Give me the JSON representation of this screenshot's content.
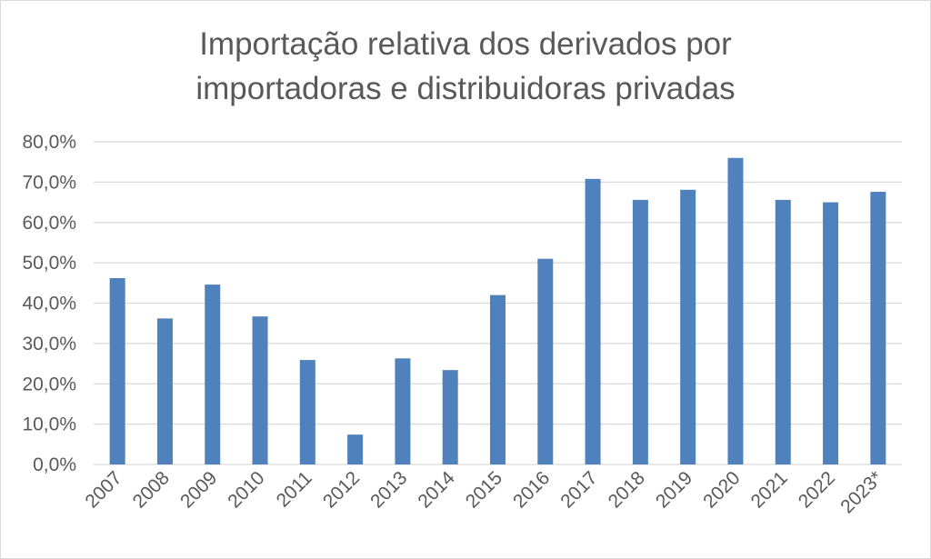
{
  "chart_data": {
    "type": "bar",
    "title": "Importação relativa dos derivados por importadoras e distribuidoras privadas",
    "title_lines": [
      "Importação relativa dos derivados por",
      "importadoras e distribuidoras privadas"
    ],
    "categories": [
      "2007",
      "2008",
      "2009",
      "2010",
      "2011",
      "2012",
      "2013",
      "2014",
      "2015",
      "2016",
      "2017",
      "2018",
      "2019",
      "2020",
      "2021",
      "2022",
      "2023*"
    ],
    "values": [
      46.2,
      36.2,
      44.6,
      36.7,
      25.9,
      7.4,
      26.3,
      23.4,
      42.0,
      51.0,
      70.8,
      65.6,
      68.1,
      76.0,
      65.6,
      65.0,
      67.6
    ],
    "value_unit": "%",
    "xlabel": "",
    "ylabel": "",
    "ylim": [
      0,
      80
    ],
    "yticks": [
      0,
      10,
      20,
      30,
      40,
      50,
      60,
      70,
      80
    ],
    "ytick_labels": [
      "0,0%",
      "10,0%",
      "20,0%",
      "30,0%",
      "40,0%",
      "50,0%",
      "60,0%",
      "70,0%",
      "80,0%"
    ],
    "grid": true,
    "legend": "none",
    "bar_color": "#4f81bd",
    "grid_color": "#d9d9d9",
    "text_color": "#595959"
  }
}
